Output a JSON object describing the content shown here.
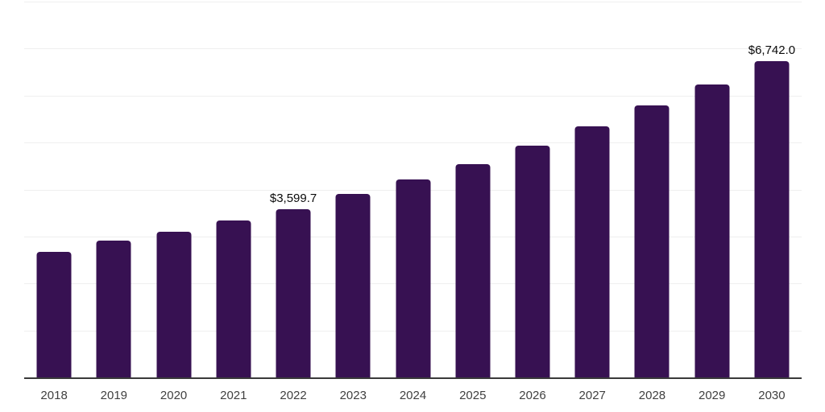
{
  "chart_data": {
    "type": "bar",
    "title": "",
    "xlabel": "",
    "ylabel": "",
    "categories": [
      "2018",
      "2019",
      "2020",
      "2021",
      "2022",
      "2023",
      "2024",
      "2025",
      "2026",
      "2027",
      "2028",
      "2029",
      "2030"
    ],
    "values": [
      2690,
      2925,
      3115,
      3355,
      3599.7,
      3920,
      4225,
      4560,
      4945,
      5355,
      5800,
      6260,
      6742
    ],
    "data_labels": {
      "2022": "$3,599.7",
      "2030": "$6,742.0"
    },
    "ylim": [
      0,
      8000
    ],
    "gridline_step": 1000,
    "grid": true,
    "legend": false,
    "colors": {
      "bar": "#371152",
      "gridline": "#efefef",
      "axis": "#3a3a3a",
      "tick_label": "#404040",
      "data_label": "#0a0a0a",
      "background": "#ffffff"
    }
  }
}
